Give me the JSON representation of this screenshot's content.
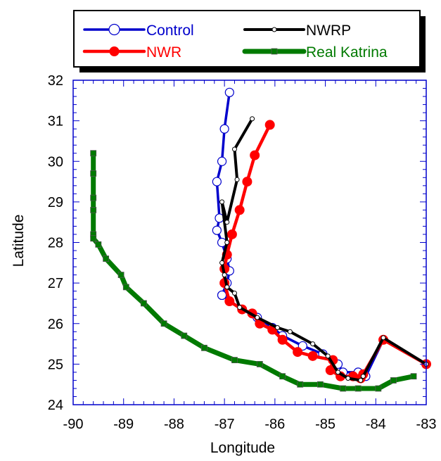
{
  "chart_data": {
    "type": "line",
    "xlabel": "Longitude",
    "ylabel": "Latitude",
    "xlim": [
      -90,
      -83
    ],
    "ylim": [
      24,
      32
    ],
    "xticks": [
      "-90",
      "-89",
      "-88",
      "-87",
      "-86",
      "-85",
      "-84",
      "-83"
    ],
    "yticks": [
      "24",
      "25",
      "26",
      "27",
      "28",
      "29",
      "30",
      "31",
      "32"
    ],
    "grid": false,
    "legend_position": "top",
    "series": [
      {
        "name": "Control",
        "color": "#0000cc",
        "marker": "open-circle",
        "x": [
          -86.9,
          -87.0,
          -87.05,
          -87.15,
          -87.1,
          -87.15,
          -87.05,
          -86.95,
          -86.9,
          -86.95,
          -87.05,
          -87.05,
          -86.65,
          -86.35,
          -86.05,
          -85.85,
          -85.45,
          -85.05,
          -84.75,
          -84.65,
          -84.35,
          -84.2,
          -83.85,
          -83.0
        ],
        "y": [
          31.7,
          30.8,
          30.0,
          29.5,
          28.6,
          28.3,
          28.0,
          27.6,
          27.3,
          27.0,
          26.7,
          26.7,
          26.35,
          26.15,
          25.9,
          25.7,
          25.45,
          25.25,
          25.0,
          24.8,
          24.8,
          24.7,
          25.6,
          25.0
        ]
      },
      {
        "name": "NWRP",
        "color": "#000000",
        "marker": "small-open-circle",
        "x": [
          -86.45,
          -86.8,
          -86.75,
          -86.95,
          -87.05,
          -86.95,
          -87.05,
          -87.0,
          -86.95,
          -86.8,
          -86.7,
          -86.35,
          -85.95,
          -85.7,
          -85.25,
          -84.95,
          -84.75,
          -84.55,
          -84.3,
          -84.25,
          -83.85,
          -83.0
        ],
        "y": [
          31.05,
          30.3,
          29.55,
          28.5,
          29.0,
          28.0,
          27.5,
          27.2,
          26.9,
          26.75,
          26.4,
          26.15,
          25.9,
          25.8,
          25.5,
          25.2,
          24.8,
          24.65,
          24.6,
          24.7,
          25.65,
          25.0
        ]
      },
      {
        "name": "NWR",
        "color": "#ff0000",
        "marker": "filled-circle",
        "x": [
          -86.1,
          -86.4,
          -86.55,
          -86.7,
          -86.85,
          -86.95,
          -87.0,
          -87.0,
          -86.9,
          -86.65,
          -86.45,
          -86.3,
          -86.05,
          -85.85,
          -85.55,
          -85.25,
          -84.85,
          -84.9,
          -84.7,
          -84.45,
          -84.3,
          -84.25,
          -83.85,
          -83.0
        ],
        "y": [
          30.9,
          30.15,
          29.5,
          28.8,
          28.2,
          27.7,
          27.35,
          27.0,
          26.55,
          26.35,
          26.25,
          26.0,
          25.85,
          25.6,
          25.3,
          25.2,
          25.1,
          24.85,
          24.7,
          24.7,
          24.65,
          24.75,
          25.6,
          25.0
        ]
      },
      {
        "name": "Real Katrina",
        "color": "#007a00",
        "marker": "filled-square",
        "x": [
          -89.6,
          -89.6,
          -89.6,
          -89.6,
          -89.6,
          -89.6,
          -89.5,
          -89.35,
          -89.05,
          -88.95,
          -88.6,
          -88.2,
          -87.8,
          -87.4,
          -86.8,
          -86.3,
          -85.85,
          -85.5,
          -85.1,
          -84.65,
          -84.35,
          -83.95,
          -83.65,
          -83.25
        ],
        "y": [
          30.2,
          29.7,
          29.1,
          28.8,
          28.2,
          28.1,
          27.95,
          27.6,
          27.2,
          26.9,
          26.5,
          26.0,
          25.7,
          25.4,
          25.1,
          25.0,
          24.7,
          24.5,
          24.5,
          24.4,
          24.4,
          24.4,
          24.6,
          24.7
        ]
      }
    ]
  }
}
